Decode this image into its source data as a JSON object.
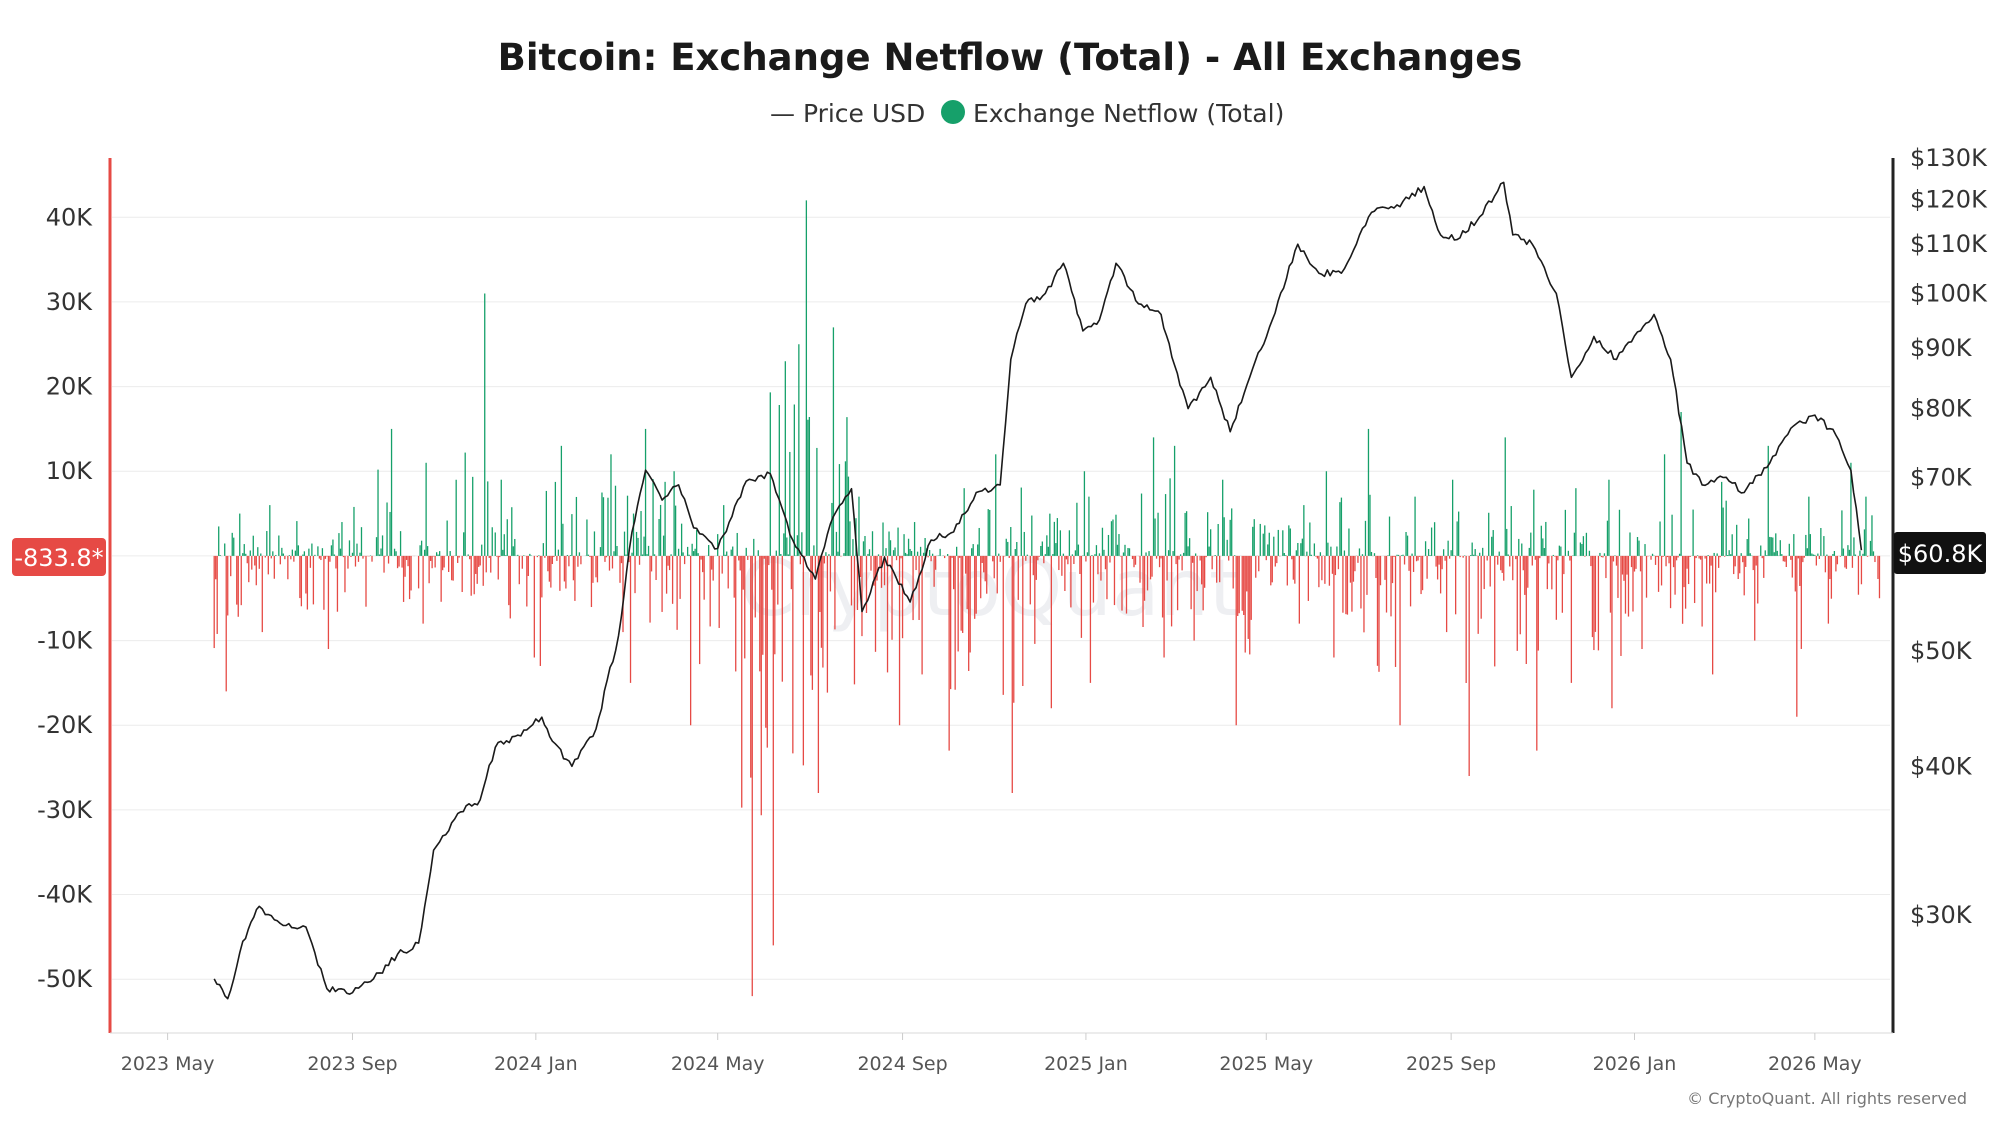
{
  "title": "Bitcoin: Exchange Netflow (Total) - All Exchanges",
  "legend": [
    {
      "label": "— Price USD",
      "color": "#222222",
      "marker": "line"
    },
    {
      "label": "Exchange Netflow (Total)",
      "color": "#16a06a",
      "marker": "dot"
    }
  ],
  "colors": {
    "inflow": "#16a06a",
    "outflow": "#e64a45",
    "price": "#1a1a1a",
    "left_axis": "#e64a45",
    "right_axis": "#222222"
  },
  "watermark": "CryptoQuant",
  "copyright": "© CryptoQuant. All rights reserved",
  "badges": {
    "netflow_current": "-833.8*",
    "price_current": "$60.8K"
  },
  "chart_data": {
    "type": "bar",
    "x_range": [
      "2023-03-25",
      "2026-06-20"
    ],
    "x_ticks": [
      "2023 May",
      "2023 Sep",
      "2024 Jan",
      "2024 May",
      "2024 Sep",
      "2025 Jan",
      "2025 May",
      "2025 Sep",
      "2026 Jan",
      "2026 May"
    ],
    "y_left": {
      "label": "Exchange Netflow (Total)",
      "ticks": [
        "40K",
        "30K",
        "20K",
        "10K",
        "0",
        "-10K",
        "-20K",
        "-30K",
        "-40K",
        "-50K"
      ],
      "range": [
        -56000,
        47000
      ]
    },
    "y_right": {
      "label": "Price USD",
      "scale": "log",
      "ticks": [
        "$130K",
        "$120K",
        "$110K",
        "$100K",
        "$90K",
        "$80K",
        "$70K",
        "$50K",
        "$40K",
        "$30K"
      ],
      "range": [
        24000,
        130000
      ]
    },
    "grid": true,
    "legend_position": "top-center",
    "series": [
      {
        "name": "Exchange Netflow (Total)",
        "type": "bar",
        "x": [
          "2023-06",
          "2023-07",
          "2023-08",
          "2023-09",
          "2023-10",
          "2023-11",
          "2023-12",
          "2024-01",
          "2024-02",
          "2024-03",
          "2024-04",
          "2024-05",
          "2024-06",
          "2024-07",
          "2024-08",
          "2024-09",
          "2024-10",
          "2024-11",
          "2024-12",
          "2025-01",
          "2025-02",
          "2025-03",
          "2025-04",
          "2025-05",
          "2025-06",
          "2025-07",
          "2025-08",
          "2025-09",
          "2025-10",
          "2025-11",
          "2025-12",
          "2026-01",
          "2026-02",
          "2026-03",
          "2026-04",
          "2026-05",
          "2026-06"
        ],
        "max_inflow": [
          5000,
          6000,
          4000,
          15000,
          11000,
          31000,
          9000,
          13000,
          12000,
          15000,
          10000,
          6000,
          42000,
          27000,
          7000,
          4000,
          8000,
          12000,
          10000,
          7000,
          14000,
          13000,
          9000,
          6000,
          10000,
          15000,
          7000,
          9000,
          14000,
          8000,
          9000,
          12000,
          17000,
          13000,
          7000,
          11000,
          7000
        ],
        "max_outflow": [
          -16000,
          -9000,
          -11000,
          -6000,
          -8000,
          -7000,
          -12000,
          -13000,
          -9000,
          -15000,
          -20000,
          -52000,
          -46000,
          -28000,
          -20000,
          -14000,
          -23000,
          -28000,
          -18000,
          -15000,
          -12000,
          -10000,
          -20000,
          -8000,
          -12000,
          -20000,
          -9000,
          -26000,
          -23000,
          -15000,
          -18000,
          -11000,
          -14000,
          -10000,
          -19000,
          -8000,
          -5000
        ]
      },
      {
        "name": "Price USD",
        "type": "line",
        "x": [
          "2023-06-01",
          "2023-06-10",
          "2023-06-20",
          "2023-07-01",
          "2023-07-15",
          "2023-08-01",
          "2023-08-15",
          "2023-09-01",
          "2023-09-15",
          "2023-10-01",
          "2023-10-15",
          "2023-10-25",
          "2023-11-10",
          "2023-11-25",
          "2023-12-05",
          "2023-12-20",
          "2024-01-05",
          "2024-01-12",
          "2024-01-25",
          "2024-02-10",
          "2024-02-25",
          "2024-03-05",
          "2024-03-14",
          "2024-03-25",
          "2024-04-05",
          "2024-04-15",
          "2024-05-01",
          "2024-05-20",
          "2024-06-05",
          "2024-06-20",
          "2024-07-05",
          "2024-07-15",
          "2024-07-29",
          "2024-08-05",
          "2024-08-20",
          "2024-09-06",
          "2024-09-20",
          "2024-10-05",
          "2024-10-20",
          "2024-11-05",
          "2024-11-12",
          "2024-11-22",
          "2024-12-05",
          "2024-12-17",
          "2024-12-30",
          "2025-01-10",
          "2025-01-21",
          "2025-02-05",
          "2025-02-20",
          "2025-03-01",
          "2025-03-10",
          "2025-03-25",
          "2025-04-07",
          "2025-04-20",
          "2025-05-05",
          "2025-05-22",
          "2025-06-05",
          "2025-06-20",
          "2025-07-10",
          "2025-07-25",
          "2025-08-14",
          "2025-08-25",
          "2025-09-05",
          "2025-09-20",
          "2025-10-06",
          "2025-10-12",
          "2025-10-25",
          "2025-11-10",
          "2025-11-20",
          "2025-12-05",
          "2025-12-20",
          "2026-01-05",
          "2026-01-14",
          "2026-01-25",
          "2026-02-05",
          "2026-02-15",
          "2026-03-01",
          "2026-03-15",
          "2026-04-01",
          "2026-04-15",
          "2026-05-01",
          "2026-05-15",
          "2026-05-25",
          "2026-06-01"
        ],
        "y": [
          26500,
          25500,
          28500,
          30500,
          29500,
          29300,
          26000,
          25800,
          26500,
          27800,
          28400,
          34000,
          36500,
          37500,
          41500,
          42500,
          44000,
          42000,
          40000,
          43000,
          51500,
          63000,
          71000,
          67000,
          69000,
          63500,
          61000,
          69500,
          70500,
          62000,
          57500,
          64000,
          68500,
          54000,
          60000,
          55000,
          62000,
          63000,
          68000,
          69000,
          88000,
          98000,
          100000,
          106000,
          93000,
          95000,
          106000,
          98000,
          96000,
          87000,
          80000,
          85000,
          76500,
          85000,
          95000,
          110000,
          104000,
          104000,
          117000,
          118000,
          123000,
          112000,
          111000,
          116000,
          124000,
          112000,
          110000,
          100000,
          85000,
          92000,
          88000,
          93000,
          96000,
          88000,
          72000,
          69000,
          70000,
          68000,
          72000,
          77000,
          79000,
          76000,
          71000,
          60800
        ]
      }
    ]
  }
}
